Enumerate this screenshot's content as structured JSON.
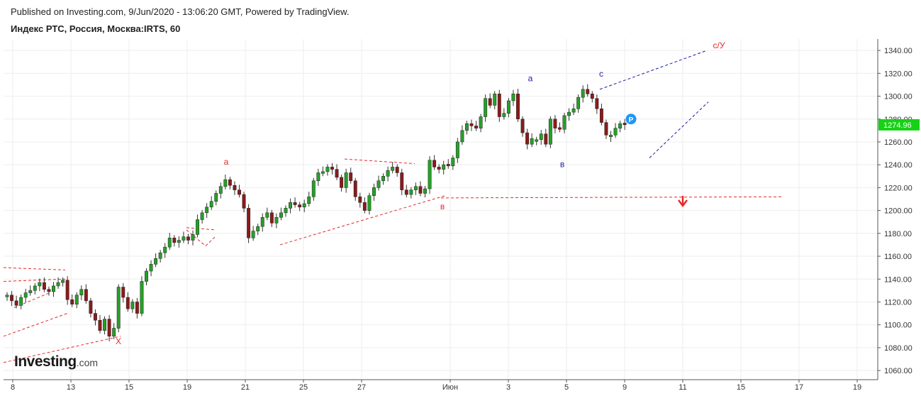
{
  "header": {
    "published": "Published on Investing.com, 9/Jun/2020 - 13:06:20 GMT, Powered by TradingView.",
    "symbol": "Индекс РТС, Россия, Москва:IRTS, 60"
  },
  "watermark": {
    "name": "Investing",
    "suffix": ".com"
  },
  "colors": {
    "up": "#26a028",
    "down": "#8b1a1a",
    "grid": "#eeeeee",
    "price_badge": "#17d117",
    "annotation_red": "#e8282a",
    "annotation_blue": "#1a1aa8",
    "marker": "#2196f3"
  },
  "chart_data": {
    "type": "candlestick",
    "ylim": [
      1052,
      1350
    ],
    "y_ticks": [
      1060,
      1080,
      1100,
      1120,
      1140,
      1160,
      1180,
      1200,
      1220,
      1240,
      1260,
      1280,
      1300,
      1320,
      1340
    ],
    "y_tick_labels": [
      "1060.00",
      "1080.00",
      "1100.00",
      "1120.00",
      "1140.00",
      "1160.00",
      "1180.00",
      "1200.00",
      "1220.00",
      "1240.00",
      "1260.00",
      "1280.00",
      "1300.00",
      "1320.00",
      "1340.00"
    ],
    "x_ticks": [
      "8",
      "13",
      "15",
      "19",
      "21",
      "25",
      "27",
      "Июн",
      "3",
      "5",
      "9",
      "11",
      "15",
      "17",
      "19"
    ],
    "last_price": "1274.96",
    "marker_label": "P",
    "wave_labels": [
      "X",
      "a",
      "в",
      "a",
      "в",
      "c",
      "с/У"
    ],
    "closes": [
      1126,
      1121,
      1117,
      1124,
      1128,
      1130,
      1134,
      1137,
      1131,
      1129,
      1134,
      1137,
      1139,
      1122,
      1118,
      1126,
      1131,
      1121,
      1110,
      1104,
      1095,
      1105,
      1090,
      1097,
      1133,
      1124,
      1114,
      1120,
      1110,
      1138,
      1147,
      1153,
      1158,
      1163,
      1168,
      1176,
      1172,
      1174,
      1177,
      1174,
      1179,
      1192,
      1198,
      1203,
      1208,
      1215,
      1221,
      1227,
      1222,
      1218,
      1214,
      1202,
      1176,
      1182,
      1186,
      1194,
      1198,
      1189,
      1194,
      1198,
      1202,
      1207,
      1205,
      1203,
      1206,
      1212,
      1226,
      1233,
      1234,
      1238,
      1236,
      1229,
      1220,
      1233,
      1226,
      1212,
      1207,
      1200,
      1213,
      1220,
      1226,
      1230,
      1235,
      1238,
      1233,
      1218,
      1214,
      1218,
      1221,
      1215,
      1219,
      1244,
      1238,
      1236,
      1240,
      1239,
      1246,
      1260,
      1270,
      1276,
      1274,
      1272,
      1282,
      1298,
      1292,
      1302,
      1282,
      1285,
      1296,
      1302,
      1280,
      1268,
      1258,
      1263,
      1262,
      1267,
      1258,
      1280,
      1272,
      1271,
      1283,
      1286,
      1289,
      1299,
      1306,
      1302,
      1298,
      1289,
      1277,
      1266,
      1266,
      1272,
      1276,
      1275
    ]
  }
}
